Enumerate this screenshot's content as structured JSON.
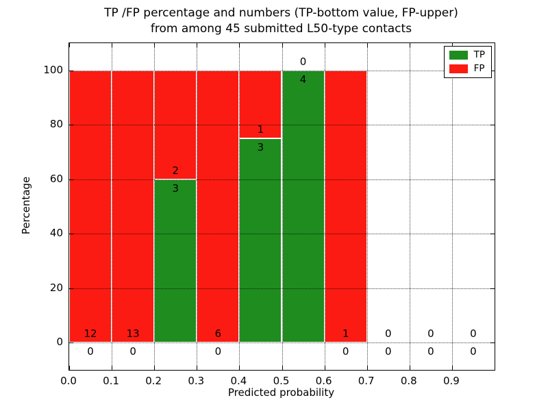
{
  "chart_data": {
    "type": "bar",
    "stacked": true,
    "title_line1": "TP /FP percentage and numbers (TP-bottom value, FP-upper)",
    "title_line2": "from among 45 submitted L50-type contacts",
    "xlabel": "Predicted probability",
    "ylabel": "Percentage",
    "x_tick_labels": [
      "0.0",
      "0.1",
      "0.2",
      "0.3",
      "0.4",
      "0.5",
      "0.6",
      "0.7",
      "0.8",
      "0.9"
    ],
    "y_ticks": [
      0,
      20,
      40,
      60,
      80,
      100
    ],
    "ylim": [
      -10,
      110
    ],
    "xlim": [
      0.0,
      1.0
    ],
    "bin_width": 0.1,
    "grid": "dotted",
    "legend_position": "upper right",
    "series": [
      {
        "name": "TP",
        "color": "#1e8c1e",
        "counts": [
          0,
          0,
          3,
          0,
          3,
          4,
          0,
          0,
          0,
          0
        ],
        "percentages": [
          0,
          0,
          60,
          0,
          75,
          100,
          0,
          0,
          0,
          0
        ]
      },
      {
        "name": "FP",
        "color": "#fb1b12",
        "counts": [
          12,
          13,
          2,
          6,
          1,
          0,
          1,
          0,
          0,
          0
        ],
        "percentages": [
          100,
          100,
          40,
          100,
          25,
          0,
          100,
          0,
          0,
          0
        ]
      }
    ],
    "annotation_note": "FP count printed above TP/FP boundary, TP count printed below it"
  }
}
